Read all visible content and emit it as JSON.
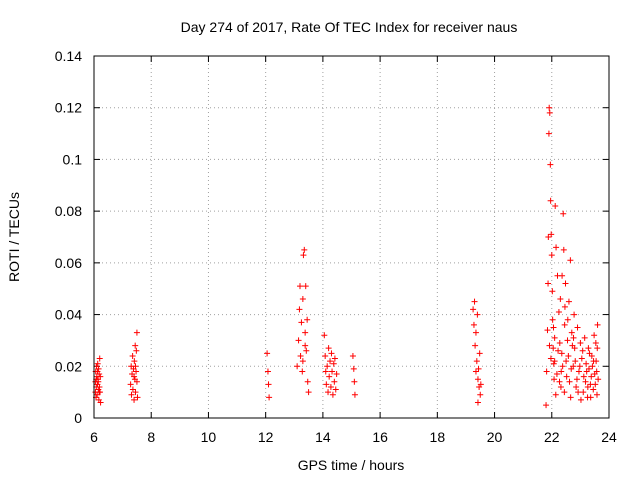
{
  "chart_data": {
    "type": "scatter",
    "title": "Day 274 of 2017, Rate Of TEC Index for receiver naus",
    "xlabel": "GPS time / hours",
    "ylabel": "ROTI / TECUs",
    "xlim": [
      6,
      24
    ],
    "ylim": [
      0,
      0.14
    ],
    "grid": true,
    "marker": "+",
    "color": "#ff0000",
    "x_ticks": [
      "6",
      "8",
      "10",
      "12",
      "14",
      "16",
      "18",
      "20",
      "22",
      "24"
    ],
    "y_ticks": [
      "0",
      "0.02",
      "0.04",
      "0.06",
      "0.08",
      "0.1",
      "0.12",
      "0.14"
    ],
    "series": [
      {
        "name": "ROTI",
        "points": [
          [
            6.05,
            0.01
          ],
          [
            6.05,
            0.014
          ],
          [
            6.06,
            0.018
          ],
          [
            6.07,
            0.008
          ],
          [
            6.08,
            0.012
          ],
          [
            6.09,
            0.02
          ],
          [
            6.1,
            0.016
          ],
          [
            6.11,
            0.009
          ],
          [
            6.12,
            0.013
          ],
          [
            6.13,
            0.021
          ],
          [
            6.14,
            0.015
          ],
          [
            6.15,
            0.011
          ],
          [
            6.16,
            0.019
          ],
          [
            6.17,
            0.007
          ],
          [
            6.18,
            0.017
          ],
          [
            6.19,
            0.012
          ],
          [
            6.2,
            0.023
          ],
          [
            6.21,
            0.01
          ],
          [
            6.22,
            0.016
          ],
          [
            6.23,
            0.006
          ],
          [
            6.08,
            0.015
          ],
          [
            6.12,
            0.018
          ],
          [
            6.15,
            0.014
          ],
          [
            6.18,
            0.01
          ],
          [
            7.28,
            0.013
          ],
          [
            7.3,
            0.02
          ],
          [
            7.31,
            0.009
          ],
          [
            7.33,
            0.017
          ],
          [
            7.35,
            0.024
          ],
          [
            7.36,
            0.011
          ],
          [
            7.38,
            0.019
          ],
          [
            7.4,
            0.007
          ],
          [
            7.41,
            0.022
          ],
          [
            7.43,
            0.015
          ],
          [
            7.44,
            0.028
          ],
          [
            7.45,
            0.01
          ],
          [
            7.47,
            0.018
          ],
          [
            7.48,
            0.026
          ],
          [
            7.5,
            0.033
          ],
          [
            7.5,
            0.014
          ],
          [
            7.52,
            0.008
          ],
          [
            7.45,
            0.02
          ],
          [
            7.4,
            0.016
          ],
          [
            12.05,
            0.025
          ],
          [
            12.08,
            0.018
          ],
          [
            12.1,
            0.013
          ],
          [
            12.12,
            0.008
          ],
          [
            13.1,
            0.02
          ],
          [
            13.15,
            0.03
          ],
          [
            13.18,
            0.042
          ],
          [
            13.2,
            0.051
          ],
          [
            13.22,
            0.024
          ],
          [
            13.25,
            0.037
          ],
          [
            13.28,
            0.018
          ],
          [
            13.3,
            0.046
          ],
          [
            13.32,
            0.063
          ],
          [
            13.35,
            0.065
          ],
          [
            13.38,
            0.033
          ],
          [
            13.4,
            0.051
          ],
          [
            13.42,
            0.026
          ],
          [
            13.45,
            0.038
          ],
          [
            13.47,
            0.014
          ],
          [
            13.5,
            0.01
          ],
          [
            13.3,
            0.022
          ],
          [
            13.38,
            0.028
          ],
          [
            14.05,
            0.032
          ],
          [
            14.08,
            0.024
          ],
          [
            14.1,
            0.018
          ],
          [
            14.12,
            0.013
          ],
          [
            14.15,
            0.02
          ],
          [
            14.18,
            0.01
          ],
          [
            14.2,
            0.027
          ],
          [
            14.22,
            0.016
          ],
          [
            14.25,
            0.022
          ],
          [
            14.28,
            0.012
          ],
          [
            14.3,
            0.025
          ],
          [
            14.32,
            0.018
          ],
          [
            14.35,
            0.009
          ],
          [
            14.38,
            0.021
          ],
          [
            14.4,
            0.014
          ],
          [
            14.42,
            0.023
          ],
          [
            14.45,
            0.011
          ],
          [
            14.48,
            0.017
          ],
          [
            15.05,
            0.024
          ],
          [
            15.08,
            0.019
          ],
          [
            15.1,
            0.014
          ],
          [
            15.12,
            0.009
          ],
          [
            19.25,
            0.042
          ],
          [
            19.28,
            0.036
          ],
          [
            19.3,
            0.045
          ],
          [
            19.32,
            0.028
          ],
          [
            19.35,
            0.033
          ],
          [
            19.38,
            0.022
          ],
          [
            19.4,
            0.04
          ],
          [
            19.42,
            0.015
          ],
          [
            19.44,
            0.019
          ],
          [
            19.46,
            0.012
          ],
          [
            19.48,
            0.025
          ],
          [
            19.5,
            0.009
          ],
          [
            19.52,
            0.013
          ],
          [
            19.35,
            0.018
          ],
          [
            19.42,
            0.006
          ],
          [
            21.8,
            0.005
          ],
          [
            21.82,
            0.018
          ],
          [
            21.85,
            0.034
          ],
          [
            21.87,
            0.052
          ],
          [
            21.88,
            0.07
          ],
          [
            21.9,
            0.11
          ],
          [
            21.91,
            0.12
          ],
          [
            21.93,
            0.118
          ],
          [
            21.95,
            0.098
          ],
          [
            21.96,
            0.084
          ],
          [
            21.98,
            0.071
          ],
          [
            22.0,
            0.063
          ],
          [
            22.02,
            0.049
          ],
          [
            22.03,
            0.038
          ],
          [
            22.05,
            0.027
          ],
          [
            22.07,
            0.021
          ],
          [
            22.08,
            0.015
          ],
          [
            22.1,
            0.031
          ],
          [
            22.12,
            0.082
          ],
          [
            22.15,
            0.066
          ],
          [
            22.2,
            0.055
          ],
          [
            22.25,
            0.041
          ],
          [
            22.28,
            0.029
          ],
          [
            22.3,
            0.046
          ],
          [
            22.33,
            0.018
          ],
          [
            22.35,
            0.025
          ],
          [
            22.4,
            0.079
          ],
          [
            22.42,
            0.065
          ],
          [
            22.45,
            0.036
          ],
          [
            22.48,
            0.052
          ],
          [
            22.5,
            0.022
          ],
          [
            22.55,
            0.03
          ],
          [
            22.6,
            0.045
          ],
          [
            22.62,
            0.014
          ],
          [
            22.65,
            0.061
          ],
          [
            22.7,
            0.033
          ],
          [
            22.75,
            0.02
          ],
          [
            22.78,
            0.04
          ],
          [
            22.8,
            0.027
          ],
          [
            22.85,
            0.012
          ],
          [
            22.9,
            0.035
          ],
          [
            22.95,
            0.018
          ],
          [
            23.0,
            0.029
          ],
          [
            23.05,
            0.023
          ],
          [
            23.1,
            0.01
          ],
          [
            23.12,
            0.016
          ],
          [
            23.15,
            0.031
          ],
          [
            23.2,
            0.021
          ],
          [
            23.25,
            0.008
          ],
          [
            23.28,
            0.027
          ],
          [
            23.3,
            0.019
          ],
          [
            23.35,
            0.013
          ],
          [
            23.4,
            0.024
          ],
          [
            23.45,
            0.011
          ],
          [
            23.48,
            0.032
          ],
          [
            23.5,
            0.017
          ],
          [
            23.55,
            0.022
          ],
          [
            23.58,
            0.009
          ],
          [
            23.6,
            0.036
          ],
          [
            23.62,
            0.015
          ],
          [
            22.1,
            0.022
          ],
          [
            22.18,
            0.017
          ],
          [
            22.22,
            0.026
          ],
          [
            22.32,
            0.012
          ],
          [
            22.38,
            0.02
          ],
          [
            22.52,
            0.016
          ],
          [
            22.58,
            0.024
          ],
          [
            22.68,
            0.019
          ],
          [
            22.72,
            0.028
          ],
          [
            22.82,
            0.022
          ],
          [
            22.88,
            0.015
          ],
          [
            22.98,
            0.02
          ],
          [
            23.08,
            0.026
          ],
          [
            23.18,
            0.014
          ],
          [
            23.22,
            0.018
          ],
          [
            23.32,
            0.025
          ],
          [
            23.38,
            0.016
          ],
          [
            23.42,
            0.02
          ],
          [
            23.52,
            0.013
          ],
          [
            23.57,
            0.018
          ],
          [
            21.92,
            0.028
          ],
          [
            21.97,
            0.023
          ],
          [
            22.06,
            0.035
          ],
          [
            22.14,
            0.009
          ],
          [
            22.27,
            0.014
          ],
          [
            22.44,
            0.01
          ],
          [
            22.66,
            0.008
          ],
          [
            22.92,
            0.01
          ],
          [
            23.02,
            0.007
          ],
          [
            23.26,
            0.012
          ],
          [
            23.36,
            0.008
          ],
          [
            23.46,
            0.022
          ],
          [
            23.54,
            0.029
          ],
          [
            23.59,
            0.027
          ],
          [
            22.36,
            0.055
          ],
          [
            22.46,
            0.043
          ],
          [
            22.56,
            0.038
          ],
          [
            22.76,
            0.031
          ]
        ]
      }
    ]
  }
}
